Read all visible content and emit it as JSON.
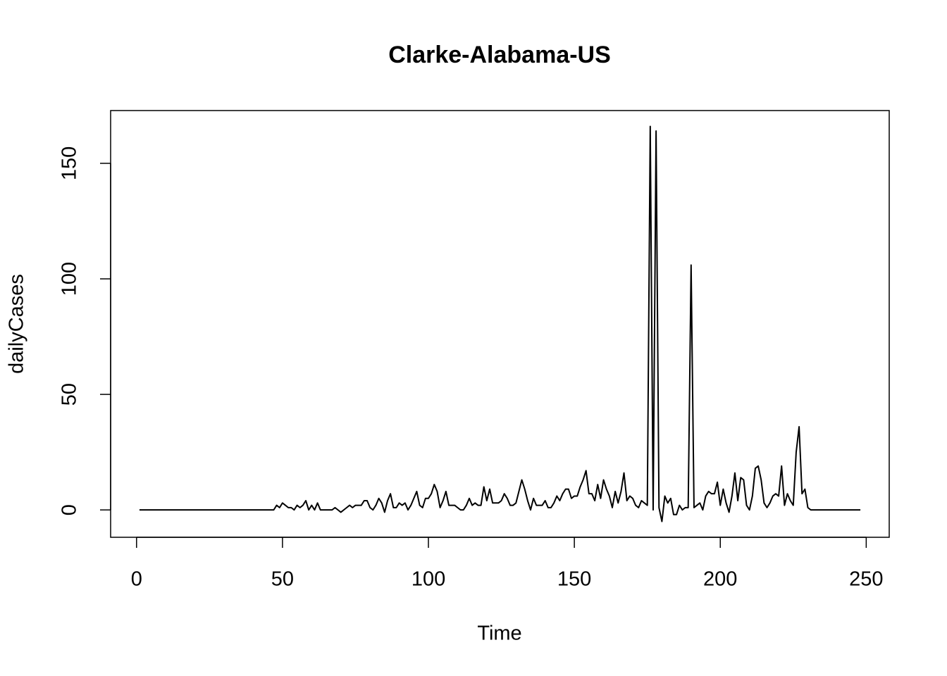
{
  "chart_data": {
    "type": "line",
    "title": "Clarke-Alabama-US",
    "x_label": "Time",
    "y_label": "dailyCases",
    "x": [
      1,
      2,
      3,
      4,
      5,
      6,
      7,
      8,
      9,
      10,
      11,
      12,
      13,
      14,
      15,
      16,
      17,
      18,
      19,
      20,
      21,
      22,
      23,
      24,
      25,
      26,
      27,
      28,
      29,
      30,
      31,
      32,
      33,
      34,
      35,
      36,
      37,
      38,
      39,
      40,
      41,
      42,
      43,
      44,
      45,
      46,
      47,
      48,
      49,
      50,
      51,
      52,
      53,
      54,
      55,
      56,
      57,
      58,
      59,
      60,
      61,
      62,
      63,
      64,
      65,
      66,
      67,
      68,
      69,
      70,
      71,
      72,
      73,
      74,
      75,
      76,
      77,
      78,
      79,
      80,
      81,
      82,
      83,
      84,
      85,
      86,
      87,
      88,
      89,
      90,
      91,
      92,
      93,
      94,
      95,
      96,
      97,
      98,
      99,
      100,
      101,
      102,
      103,
      104,
      105,
      106,
      107,
      108,
      109,
      110,
      111,
      112,
      113,
      114,
      115,
      116,
      117,
      118,
      119,
      120,
      121,
      122,
      123,
      124,
      125,
      126,
      127,
      128,
      129,
      130,
      131,
      132,
      133,
      134,
      135,
      136,
      137,
      138,
      139,
      140,
      141,
      142,
      143,
      144,
      145,
      146,
      147,
      148,
      149,
      150,
      151,
      152,
      153,
      154,
      155,
      156,
      157,
      158,
      159,
      160,
      161,
      162,
      163,
      164,
      165,
      166,
      167,
      168,
      169,
      170,
      171,
      172,
      173,
      174,
      175,
      176,
      177,
      178,
      179,
      180,
      181,
      182,
      183,
      184,
      185,
      186,
      187,
      188,
      189,
      190,
      191,
      192,
      193,
      194,
      195,
      196,
      197,
      198,
      199,
      200,
      201,
      202,
      203,
      204,
      205,
      206,
      207,
      208,
      209,
      210,
      211,
      212,
      213,
      214,
      215,
      216,
      217,
      218,
      219,
      220,
      221,
      222,
      223,
      224,
      225,
      226,
      227,
      228,
      229,
      230,
      231,
      232,
      233,
      234,
      235,
      236,
      237,
      238,
      239,
      240,
      241,
      242,
      243,
      244,
      245,
      246,
      247,
      248
    ],
    "series": [
      {
        "name": "dailyCases",
        "color": "#000000",
        "values": [
          0,
          0,
          0,
          0,
          0,
          0,
          0,
          0,
          0,
          0,
          0,
          0,
          0,
          0,
          0,
          0,
          0,
          0,
          0,
          0,
          0,
          0,
          0,
          0,
          0,
          0,
          0,
          0,
          0,
          0,
          0,
          0,
          0,
          0,
          0,
          0,
          0,
          0,
          0,
          0,
          0,
          0,
          0,
          0,
          0,
          0,
          0,
          2,
          1,
          3,
          2,
          1,
          1,
          0,
          2,
          1,
          2,
          4,
          0,
          2,
          0,
          3,
          0,
          0,
          0,
          0,
          0,
          1,
          0,
          -1,
          0,
          1,
          2,
          1,
          2,
          2,
          2,
          4,
          4,
          1,
          0,
          2,
          5,
          3,
          -1,
          4,
          7,
          1,
          1,
          3,
          2,
          3,
          0,
          2,
          5,
          8,
          2,
          1,
          5,
          5,
          7,
          11,
          8,
          1,
          4,
          8,
          2,
          2,
          2,
          1,
          0,
          0,
          2,
          5,
          2,
          3,
          2,
          2,
          10,
          4,
          9,
          3,
          3,
          3,
          4,
          7,
          5,
          2,
          2,
          3,
          8,
          13,
          9,
          4,
          0,
          5,
          2,
          2,
          2,
          4,
          1,
          1,
          3,
          6,
          4,
          7,
          9,
          9,
          5,
          6,
          6,
          10,
          13,
          17,
          7,
          7,
          4,
          11,
          5,
          13,
          9,
          6,
          1,
          8,
          3,
          8,
          16,
          4,
          6,
          5,
          2,
          1,
          4,
          3,
          2,
          166,
          0,
          164,
          1,
          -5,
          6,
          3,
          5,
          -2,
          -2,
          2,
          0,
          1,
          1,
          106,
          1,
          2,
          3,
          0,
          6,
          8,
          7,
          7,
          12,
          2,
          9,
          3,
          -1,
          6,
          16,
          4,
          14,
          13,
          2,
          0,
          6,
          18,
          19,
          13,
          3,
          1,
          3,
          6,
          7,
          6,
          19,
          2,
          7,
          4,
          2,
          25,
          36,
          7,
          9,
          1,
          0,
          0,
          0,
          0,
          0,
          0,
          0,
          0,
          0,
          0,
          0,
          0,
          0,
          0,
          0,
          0,
          0,
          0
        ]
      }
    ],
    "xlim": [
      -8.88,
      257.88
    ],
    "ylim": [
      -11.84,
      172.84
    ],
    "xticks": [
      0,
      50,
      100,
      150,
      200,
      250
    ],
    "yticks": [
      0,
      50,
      100,
      150
    ]
  }
}
